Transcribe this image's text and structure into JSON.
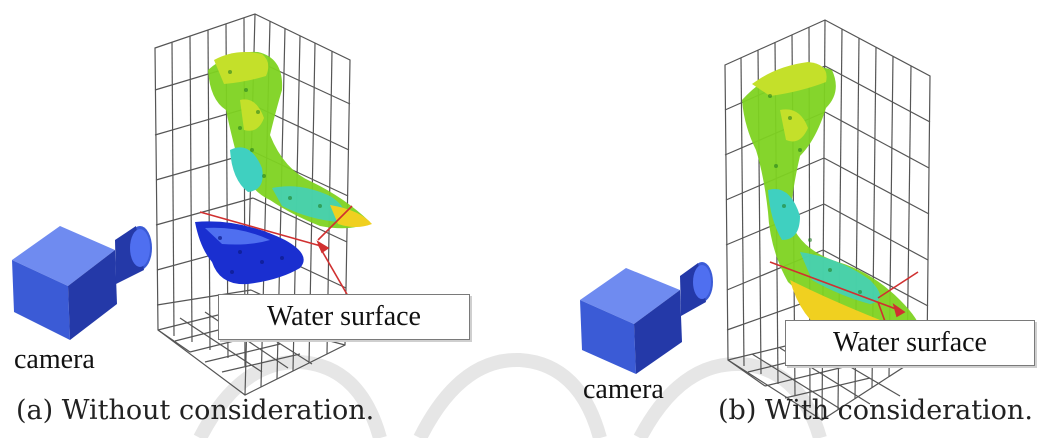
{
  "panels": [
    {
      "id": "a",
      "caption": "(a) Without consideration.",
      "camera_label": "camera",
      "water_label": "Water surface",
      "state": "uncorrected"
    },
    {
      "id": "b",
      "caption": "(b) With consideration.",
      "camera_label": "camera",
      "water_label": "Water surface",
      "state": "corrected"
    }
  ],
  "colors": {
    "grid": "#555555",
    "camera_front": "#3b5bd6",
    "camera_side": "#2439a8",
    "camera_top": "#6f8bf0",
    "water_line": "#d03030",
    "cloud_green": "#7ed321",
    "cloud_yellowgreen": "#c4e02a",
    "cloud_cyan": "#3fd0c0",
    "cloud_yellow": "#f0d020",
    "cloud_blue": "#1a2fd0",
    "watermark": "#e6e6e6"
  }
}
